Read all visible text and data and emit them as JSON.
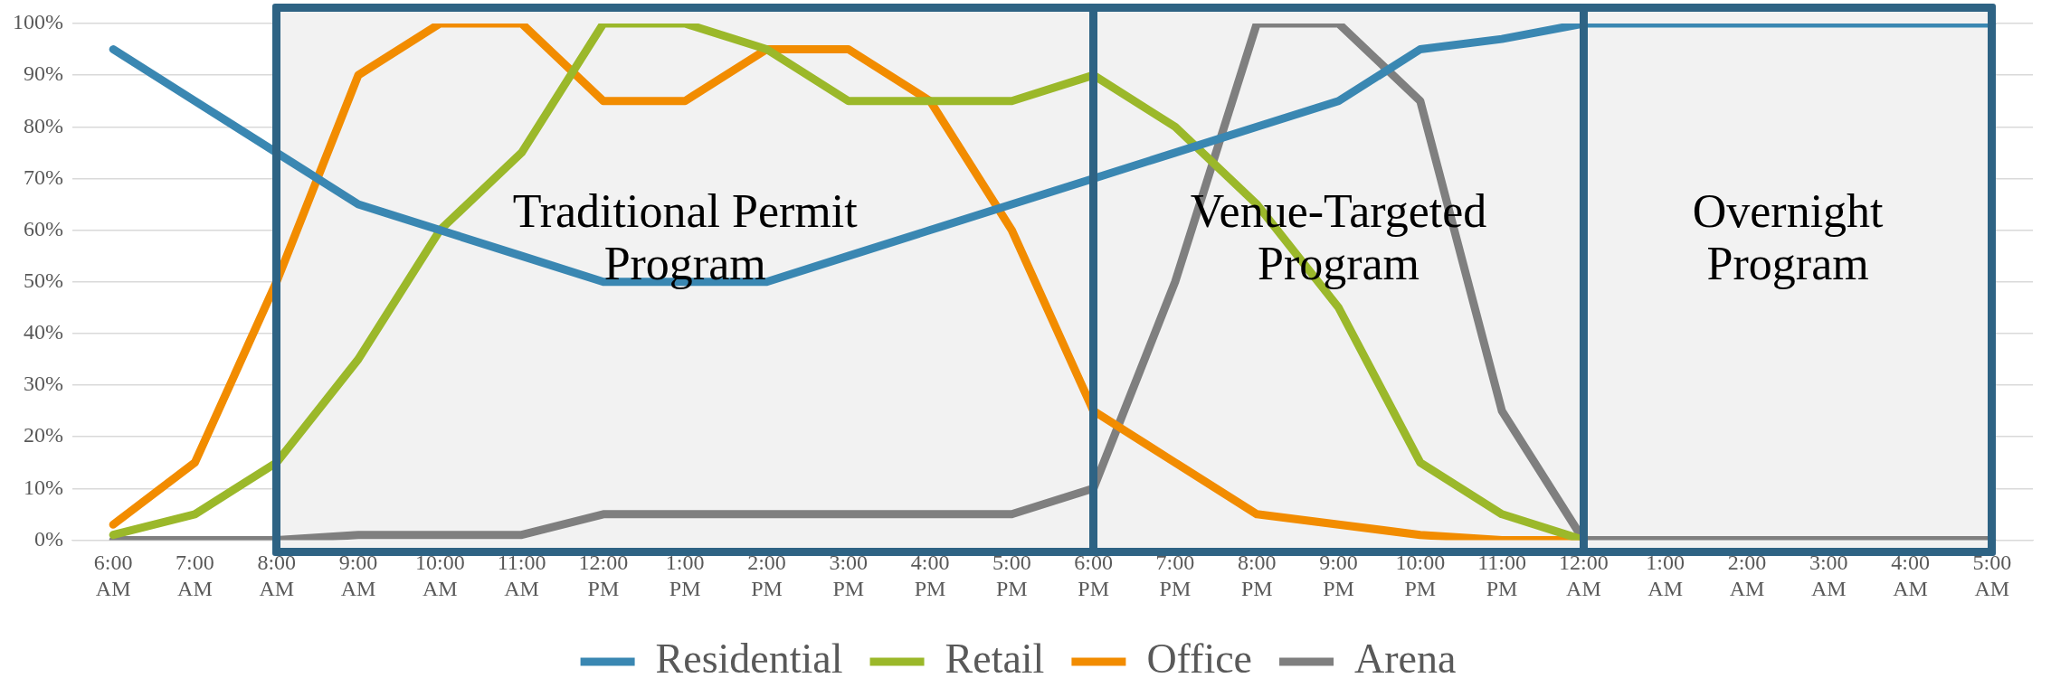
{
  "chart_data": {
    "type": "line",
    "categories": [
      "6:00 AM",
      "7:00 AM",
      "8:00 AM",
      "9:00 AM",
      "10:00 AM",
      "11:00 AM",
      "12:00 PM",
      "1:00 PM",
      "2:00 PM",
      "3:00 PM",
      "4:00 PM",
      "5:00 PM",
      "6:00 PM",
      "7:00 PM",
      "8:00 PM",
      "9:00 PM",
      "10:00 PM",
      "11:00 PM",
      "12:00 AM",
      "1:00 AM",
      "2:00 AM",
      "3:00 AM",
      "4:00 AM",
      "5:00 AM"
    ],
    "series": [
      {
        "name": "Residential",
        "color": "#3a87b2",
        "values": [
          95,
          85,
          75,
          65,
          60,
          55,
          50,
          50,
          50,
          55,
          60,
          65,
          70,
          75,
          80,
          85,
          95,
          97,
          100,
          100,
          100,
          100,
          100,
          100
        ]
      },
      {
        "name": "Retail",
        "color": "#9bb82a",
        "values": [
          1,
          5,
          15,
          35,
          60,
          75,
          100,
          100,
          95,
          85,
          85,
          85,
          90,
          80,
          65,
          45,
          15,
          5,
          0,
          null,
          null,
          null,
          null,
          null
        ]
      },
      {
        "name": "Office",
        "color": "#f28c00",
        "values": [
          3,
          15,
          50,
          90,
          100,
          100,
          85,
          85,
          95,
          95,
          85,
          60,
          25,
          15,
          5,
          3,
          1,
          0,
          0,
          null,
          null,
          null,
          null,
          null
        ]
      },
      {
        "name": "Arena",
        "color": "#7f7f7f",
        "values": [
          0,
          0,
          0,
          1,
          1,
          1,
          5,
          5,
          5,
          5,
          5,
          5,
          10,
          50,
          100,
          100,
          85,
          25,
          0,
          0,
          0,
          0,
          0,
          0
        ]
      }
    ],
    "ylim": [
      0,
      100
    ],
    "yticks": [
      {
        "value": 0,
        "label": "0%"
      },
      {
        "value": 10,
        "label": "10%"
      },
      {
        "value": 20,
        "label": "20%"
      },
      {
        "value": 30,
        "label": "30%"
      },
      {
        "value": 40,
        "label": "40%"
      },
      {
        "value": 50,
        "label": "50%"
      },
      {
        "value": 60,
        "label": "60%"
      },
      {
        "value": 70,
        "label": "70%"
      },
      {
        "value": 80,
        "label": "80%"
      },
      {
        "value": 90,
        "label": "90%"
      },
      {
        "value": 100,
        "label": "100%"
      }
    ],
    "bands": [
      {
        "axis": "x",
        "from": "8:00 AM",
        "to": "6:00 PM",
        "label": "Traditional Permit Program",
        "color": "#f2f2f2"
      },
      {
        "axis": "x",
        "from": "6:00 PM",
        "to": "12:00 AM",
        "label": "Venue-Targeted Program",
        "color": "#f2f2f2"
      },
      {
        "axis": "x",
        "from": "12:00 AM",
        "to": "5:00 AM",
        "label": "Overnight Program",
        "color": "#f2f2f2"
      }
    ],
    "grid": "y",
    "legend": "bottom",
    "marker": "none",
    "line_style": "solid"
  }
}
